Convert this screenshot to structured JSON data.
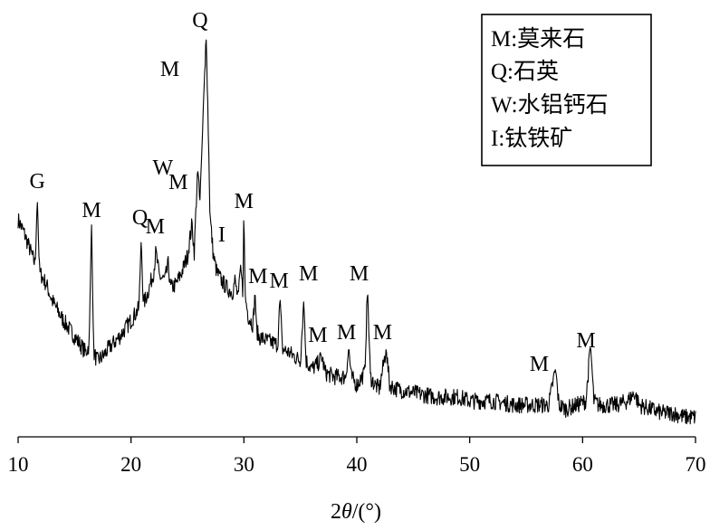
{
  "chart_data": {
    "type": "line",
    "xlabel_prefix": "2",
    "xlabel_italic": "θ",
    "xlabel_suffix": "/(°)",
    "ylabel": "",
    "xlim": [
      10,
      70
    ],
    "xticks": [
      10,
      20,
      30,
      40,
      50,
      60,
      70
    ],
    "y_axis_shown": false,
    "legend": {
      "placement": "top-right",
      "entries": [
        "M:莫来石",
        "Q:石英",
        "W:水铝钙石",
        "I:钛铁矿"
      ]
    },
    "peak_labels": [
      {
        "label": "G",
        "x": 11.7
      },
      {
        "label": "M",
        "x": 16.5
      },
      {
        "label": "Q",
        "x": 20.8
      },
      {
        "label": "M",
        "x": 22.3
      },
      {
        "label": "W",
        "x": 23.3
      },
      {
        "label": "M",
        "x": 24.5
      },
      {
        "label": "M",
        "x": 25.2
      },
      {
        "label": "Q",
        "x": 26.6
      },
      {
        "label": "I",
        "x": 29.0
      },
      {
        "label": "M",
        "x": 30.0
      },
      {
        "label": "M",
        "x": 31.4
      },
      {
        "label": "M",
        "x": 33.2
      },
      {
        "label": "M",
        "x": 35.4
      },
      {
        "label": "M",
        "x": 36.7
      },
      {
        "label": "M",
        "x": 39.4
      },
      {
        "label": "M",
        "x": 41.0
      },
      {
        "label": "M",
        "x": 42.6
      },
      {
        "label": "M",
        "x": 57.6
      },
      {
        "label": "M",
        "x": 60.7
      }
    ],
    "series": [
      {
        "name": "",
        "x": [
          10,
          10.5,
          11,
          11.5,
          11.7,
          11.9,
          12.5,
          13,
          14,
          15,
          16,
          16.3,
          16.5,
          16.7,
          17,
          17.5,
          18,
          19,
          20,
          20.7,
          20.9,
          21.1,
          21.5,
          22,
          22.2,
          22.5,
          23,
          23.3,
          23.5,
          24,
          24.5,
          25,
          25.4,
          25.6,
          25.9,
          26.1,
          26.3,
          26.5,
          26.65,
          26.8,
          27,
          27.3,
          27.6,
          28,
          28.5,
          29,
          29.2,
          29.5,
          29.7,
          29.9,
          30.0,
          30.1,
          30.4,
          30.8,
          31.0,
          31.1,
          31.3,
          32,
          33,
          33.2,
          33.4,
          34,
          35,
          35.3,
          35.5,
          36,
          36.5,
          36.9,
          37.2,
          38,
          39,
          39.3,
          39.5,
          40,
          40.7,
          40.95,
          41.2,
          41.6,
          42,
          42.6,
          42.9,
          43.5,
          45,
          47,
          49,
          50,
          52,
          54,
          56,
          57,
          57.6,
          57.9,
          58.5,
          59.5,
          60.3,
          60.7,
          61.0,
          61.4,
          62,
          63,
          64,
          64.6,
          65,
          66,
          67,
          68,
          69,
          70
        ],
        "y": [
          51,
          48,
          44,
          40,
          56,
          38,
          35,
          31,
          26,
          22,
          18,
          20,
          51,
          18,
          16,
          17,
          19,
          22,
          26,
          29,
          46,
          30,
          33,
          38,
          43,
          37,
          36,
          40,
          34,
          35,
          38,
          42,
          50,
          43,
          64,
          55,
          70,
          86,
          97,
          80,
          52,
          42,
          38,
          36,
          34,
          33,
          36,
          31,
          40,
          33,
          54,
          32,
          27,
          25,
          33,
          24,
          22,
          21,
          20,
          32,
          19,
          18,
          16,
          31,
          16,
          14,
          15,
          17,
          13,
          12,
          12,
          19,
          12,
          10,
          13,
          34,
          12,
          10,
          9,
          19,
          10,
          9,
          8,
          7,
          7,
          6,
          6,
          5,
          5,
          5,
          14,
          5,
          4,
          5,
          6,
          20,
          6,
          5,
          5,
          5,
          6,
          8,
          5,
          4,
          3,
          3,
          2,
          2
        ]
      }
    ]
  }
}
